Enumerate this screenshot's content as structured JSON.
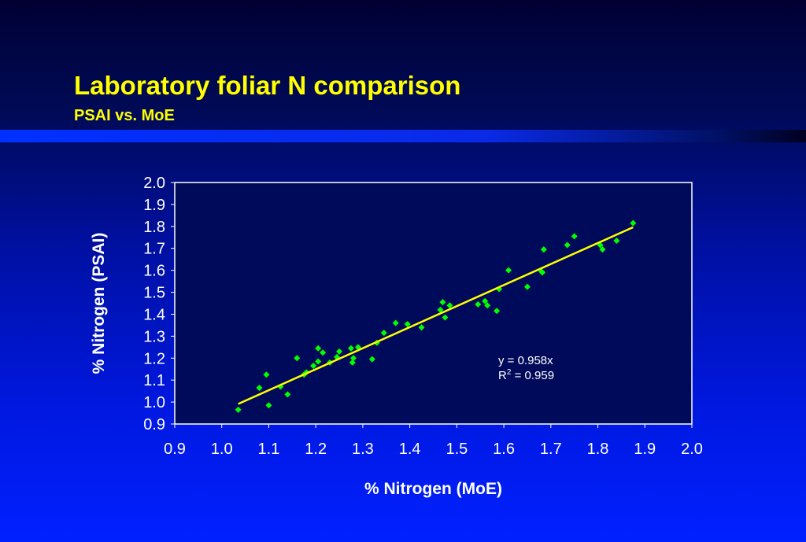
{
  "slide": {
    "title": "Laboratory foliar N comparison",
    "subtitle": "PSAI vs. MoE"
  },
  "colors": {
    "accent": "#ffff00",
    "point": "#00ff00",
    "trendline": "#ffff00",
    "axis_text": "#ffffff"
  },
  "chart_data": {
    "type": "scatter",
    "xlabel": "% Nitrogen (MoE)",
    "ylabel": "% Nitrogen (PSAI)",
    "xlim": [
      0.9,
      2.0
    ],
    "ylim": [
      0.9,
      2.0
    ],
    "x_ticks": [
      "0.9",
      "1.0",
      "1.1",
      "1.2",
      "1.3",
      "1.4",
      "1.5",
      "1.6",
      "1.7",
      "1.8",
      "1.9",
      "2.0"
    ],
    "y_ticks": [
      "2.0",
      "1.9",
      "1.8",
      "1.7",
      "1.6",
      "1.5",
      "1.4",
      "1.3",
      "1.2",
      "1.1",
      "1.0",
      "0.9"
    ],
    "grid": false,
    "series": [
      {
        "points": [
          [
            1.035,
            0.965
          ],
          [
            1.08,
            1.065
          ],
          [
            1.095,
            1.125
          ],
          [
            1.1,
            0.985
          ],
          [
            1.125,
            1.07
          ],
          [
            1.14,
            1.035
          ],
          [
            1.16,
            1.2
          ],
          [
            1.175,
            1.125
          ],
          [
            1.18,
            1.135
          ],
          [
            1.195,
            1.165
          ],
          [
            1.205,
            1.185
          ],
          [
            1.205,
            1.245
          ],
          [
            1.215,
            1.225
          ],
          [
            1.23,
            1.18
          ],
          [
            1.245,
            1.205
          ],
          [
            1.25,
            1.23
          ],
          [
            1.275,
            1.245
          ],
          [
            1.278,
            1.18
          ],
          [
            1.28,
            1.2
          ],
          [
            1.29,
            1.25
          ],
          [
            1.32,
            1.195
          ],
          [
            1.33,
            1.27
          ],
          [
            1.345,
            1.315
          ],
          [
            1.37,
            1.36
          ],
          [
            1.395,
            1.355
          ],
          [
            1.425,
            1.34
          ],
          [
            1.465,
            1.42
          ],
          [
            1.47,
            1.455
          ],
          [
            1.475,
            1.385
          ],
          [
            1.485,
            1.44
          ],
          [
            1.545,
            1.445
          ],
          [
            1.56,
            1.46
          ],
          [
            1.565,
            1.44
          ],
          [
            1.585,
            1.415
          ],
          [
            1.59,
            1.515
          ],
          [
            1.61,
            1.6
          ],
          [
            1.65,
            1.525
          ],
          [
            1.68,
            1.595
          ],
          [
            1.682,
            1.59
          ],
          [
            1.685,
            1.695
          ],
          [
            1.735,
            1.715
          ],
          [
            1.75,
            1.755
          ],
          [
            1.805,
            1.715
          ],
          [
            1.81,
            1.695
          ],
          [
            1.84,
            1.735
          ],
          [
            1.875,
            1.815
          ]
        ]
      }
    ],
    "trendline": {
      "slope": 0.958,
      "x_range": [
        1.035,
        1.875
      ],
      "equation_label": "y = 0.958x",
      "r2_prefix": "R",
      "r2_sup": "2",
      "r2_value": " = 0.959"
    }
  }
}
